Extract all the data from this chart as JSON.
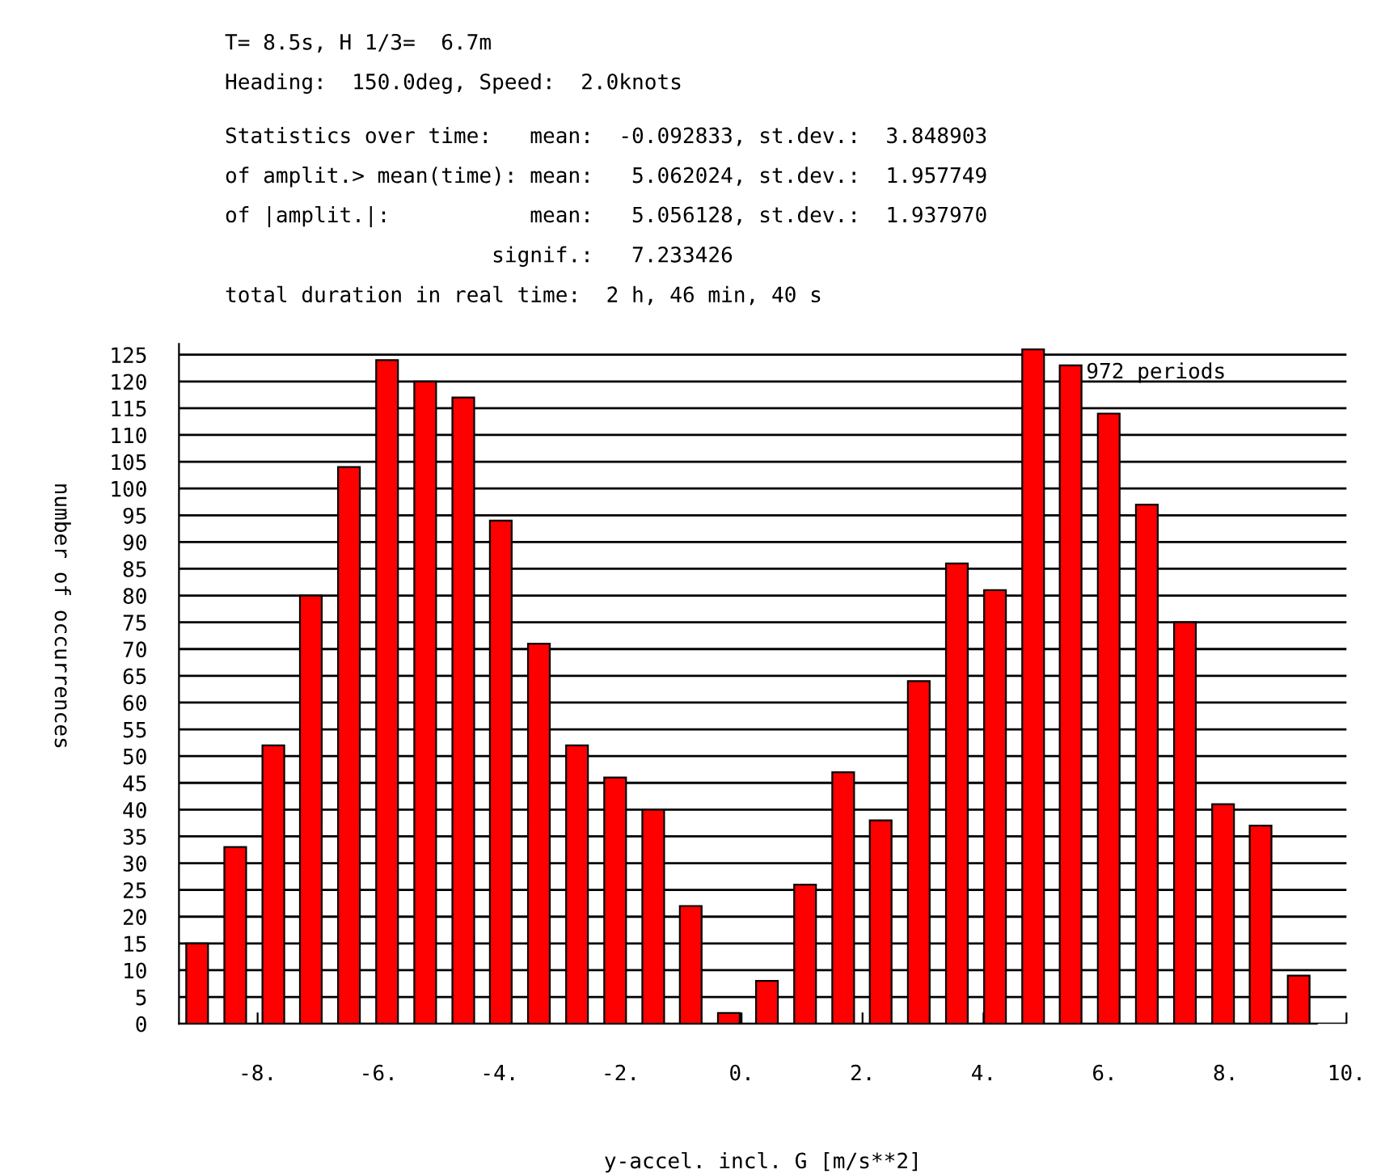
{
  "chart_data": {
    "type": "bar",
    "xlabel": "y-accel. incl. G [m/s**2]",
    "ylabel": "number of occurrences",
    "annotations": [
      "T= 8.5s, H 1/3=  6.7m",
      "Heading:  150.0deg, Speed:  2.0knots",
      "Statistics over time:   mean:  -0.092833, st.dev.:  3.848903",
      "of amplit.> mean(time): mean:   5.062024, st.dev.:  1.957749",
      "of |amplit.|:           mean:   5.056128, st.dev.:  1.937970",
      "                     signif.:   7.233426",
      "total duration in real time:  2 h, 46 min, 40 s",
      "972 periods"
    ],
    "x": [
      -9.0,
      -8.37,
      -7.74,
      -7.12,
      -6.49,
      -5.86,
      -5.23,
      -4.6,
      -3.98,
      -3.35,
      -2.72,
      -2.09,
      -1.46,
      -0.84,
      -0.21,
      0.42,
      1.05,
      1.68,
      2.3,
      2.93,
      3.56,
      4.19,
      4.82,
      5.44,
      6.07,
      6.7,
      7.33,
      7.96,
      8.58,
      9.21
    ],
    "values": [
      15,
      33,
      52,
      80,
      104,
      124,
      120,
      117,
      94,
      71,
      52,
      46,
      40,
      22,
      2,
      8,
      26,
      47,
      38,
      64,
      86,
      81,
      126,
      123,
      114,
      97,
      75,
      41,
      37,
      9
    ],
    "color": "#ff0000",
    "xlim": [
      -9.3,
      10.0
    ],
    "xticks": [
      {
        "value": -8,
        "label": "-8."
      },
      {
        "value": -6,
        "label": "-6."
      },
      {
        "value": -4,
        "label": "-4."
      },
      {
        "value": -2,
        "label": "-2."
      },
      {
        "value": 0,
        "label": "0."
      },
      {
        "value": 2,
        "label": "2."
      },
      {
        "value": 4,
        "label": "4."
      },
      {
        "value": 6,
        "label": "6."
      },
      {
        "value": 8,
        "label": "8."
      },
      {
        "value": 10,
        "label": "10."
      }
    ],
    "ylim": [
      0,
      127
    ],
    "yticks": [
      0,
      5,
      10,
      15,
      20,
      25,
      30,
      35,
      40,
      45,
      50,
      55,
      60,
      65,
      70,
      75,
      80,
      85,
      90,
      95,
      100,
      105,
      110,
      115,
      120,
      125
    ],
    "grid": "y",
    "legend": false
  }
}
